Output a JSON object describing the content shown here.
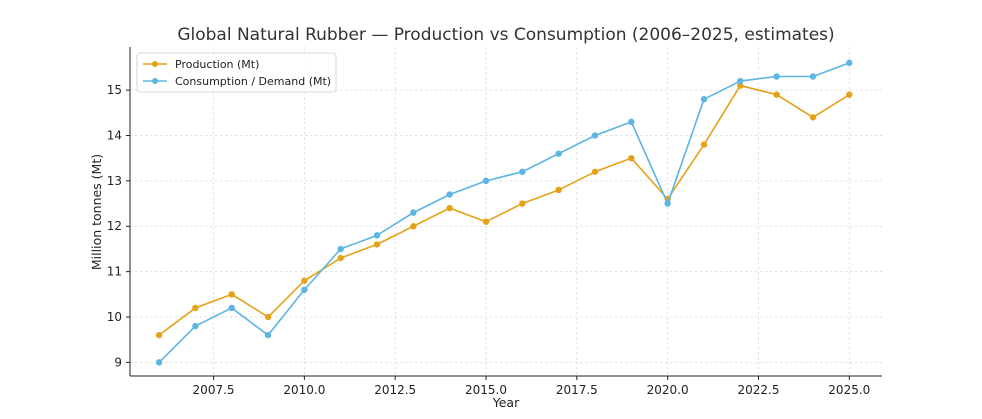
{
  "chart_data": {
    "type": "line",
    "title": "Global Natural Rubber — Production vs Consumption (2006–2025, estimates)",
    "xlabel": "Year",
    "ylabel": "Million tonnes (Mt)",
    "xlim": [
      2005.2,
      2025.9
    ],
    "ylim": [
      8.7,
      15.95
    ],
    "xticks": [
      2007.5,
      2010.0,
      2012.5,
      2015.0,
      2017.5,
      2020.0,
      2022.5,
      2025.0
    ],
    "xtick_labels": [
      "2007.5",
      "2010.0",
      "2012.5",
      "2015.0",
      "2017.5",
      "2020.0",
      "2022.5",
      "2025.0"
    ],
    "yticks": [
      9,
      10,
      11,
      12,
      13,
      14,
      15
    ],
    "ytick_labels": [
      "9",
      "10",
      "11",
      "12",
      "13",
      "14",
      "15"
    ],
    "grid": true,
    "legend_position": "top-left",
    "x": [
      2006,
      2007,
      2008,
      2009,
      2010,
      2011,
      2012,
      2013,
      2014,
      2015,
      2016,
      2017,
      2018,
      2019,
      2020,
      2021,
      2022,
      2023,
      2024,
      2025
    ],
    "series": [
      {
        "name": "Production (Mt)",
        "color": "#E5A117",
        "values": [
          9.6,
          10.2,
          10.5,
          10.0,
          10.8,
          11.3,
          11.6,
          12.0,
          12.4,
          12.1,
          12.5,
          12.8,
          13.2,
          13.5,
          12.6,
          13.8,
          15.1,
          14.9,
          14.4,
          14.9
        ]
      },
      {
        "name": "Consumption / Demand (Mt)",
        "color": "#5DB5E1",
        "values": [
          9.0,
          9.8,
          10.2,
          9.6,
          10.6,
          11.5,
          11.8,
          12.3,
          12.7,
          13.0,
          13.2,
          13.6,
          14.0,
          14.3,
          12.5,
          14.8,
          15.2,
          15.3,
          15.3,
          15.6
        ]
      }
    ]
  }
}
